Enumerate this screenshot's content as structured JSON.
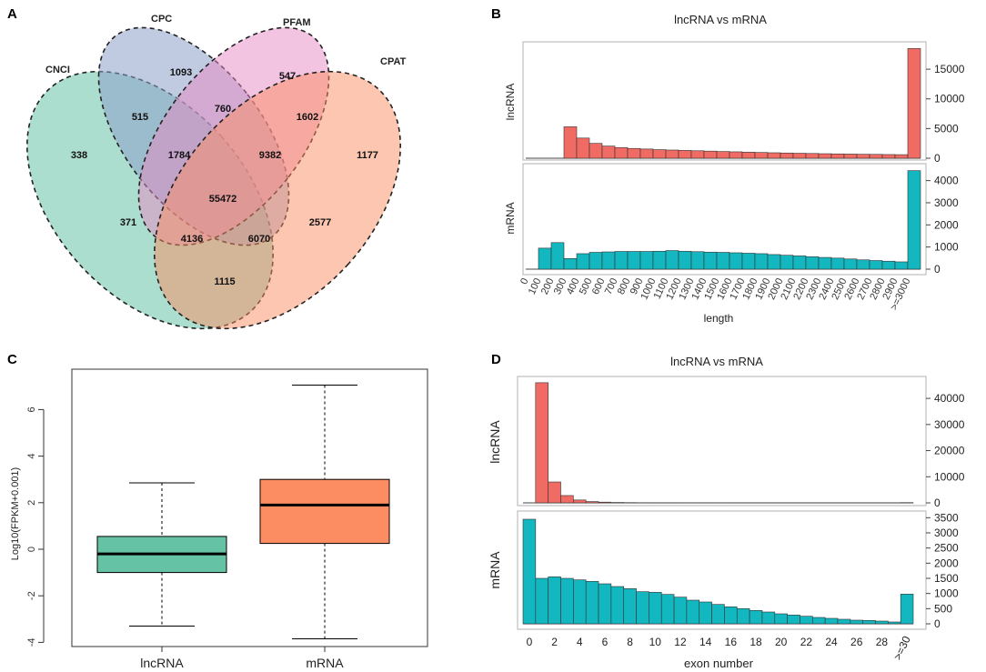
{
  "panels": {
    "A": "A",
    "B": "B",
    "C": "C",
    "D": "D"
  },
  "colors": {
    "cnci": "#66c2a5",
    "cpc": "#8da0cb",
    "pfam": "#e78ac3",
    "cpat": "#fc8d62",
    "lncrna_bar": "#f06b63",
    "mrna_bar": "#13b7bf",
    "box_lnc": "#66c2a5",
    "box_mrna": "#fc8d62",
    "frame": "#bdbdbd"
  },
  "chart_data": [
    {
      "type": "venn",
      "sets": [
        "CNCI",
        "CPC",
        "PFAM",
        "CPAT"
      ],
      "regions": [
        {
          "id": "cnci_only",
          "value": "338"
        },
        {
          "id": "cpc_only",
          "value": "1093"
        },
        {
          "id": "pfam_only",
          "value": "547"
        },
        {
          "id": "cpat_only",
          "value": "1177"
        },
        {
          "id": "cnci_cpc",
          "value": "515"
        },
        {
          "id": "cpc_pfam",
          "value": "760"
        },
        {
          "id": "pfam_cpat",
          "value": "1602"
        },
        {
          "id": "cnci_cpc_pfam",
          "value": "1784"
        },
        {
          "id": "cpc_pfam_cpat",
          "value": "9382"
        },
        {
          "id": "all_four",
          "value": "55472"
        },
        {
          "id": "cnci_pfam",
          "value": "371"
        },
        {
          "id": "cnci_pfam_cpat",
          "value": "4136"
        },
        {
          "id": "cnci_cpc_cpat",
          "value": "6070"
        },
        {
          "id": "cpc_cpat",
          "value": "2577"
        },
        {
          "id": "cnci_cpat",
          "value": "1115"
        }
      ]
    },
    {
      "type": "bar",
      "title": "lncRNA vs mRNA",
      "xlabel": "length",
      "categories": [
        "0",
        "100",
        "200",
        "300",
        "400",
        "500",
        "600",
        "700",
        "800",
        "900",
        "1000",
        "1100",
        "1200",
        "1300",
        "1400",
        "1500",
        "1600",
        "1700",
        "1800",
        "1900",
        "2000",
        "2100",
        "2200",
        "2300",
        "2400",
        "2500",
        "2600",
        "2700",
        "2800",
        "2900",
        ">=3000"
      ],
      "series": [
        {
          "name": "lncRNA",
          "ylim": [
            0,
            19000
          ],
          "yticks": [
            0,
            5000,
            10000,
            15000
          ],
          "values": [
            0,
            0,
            0,
            5300,
            3400,
            2500,
            2050,
            1800,
            1650,
            1550,
            1450,
            1380,
            1320,
            1260,
            1200,
            1130,
            1080,
            1020,
            970,
            920,
            880,
            840,
            800,
            760,
            730,
            700,
            670,
            650,
            620,
            600,
            18500
          ]
        },
        {
          "name": "mRNA",
          "ylim": [
            0,
            4600
          ],
          "yticks": [
            0,
            1000,
            2000,
            3000,
            4000
          ],
          "values": [
            0,
            950,
            1200,
            480,
            700,
            760,
            780,
            800,
            800,
            800,
            810,
            840,
            810,
            790,
            770,
            760,
            740,
            720,
            700,
            660,
            630,
            600,
            560,
            530,
            500,
            460,
            420,
            390,
            360,
            330,
            4450
          ]
        }
      ]
    },
    {
      "type": "box",
      "ylabel": "Log10(FPKM+0.001)",
      "ylim": [
        -4.2,
        7.3
      ],
      "yticks": [
        -4,
        -2,
        0,
        2,
        4,
        6
      ],
      "categories": [
        "lncRNA",
        "mRNA"
      ],
      "boxes": [
        {
          "name": "lncRNA",
          "whisker_low": -3.3,
          "q1": -1.0,
          "median": -0.2,
          "q3": 0.55,
          "whisker_high": 2.85
        },
        {
          "name": "mRNA",
          "whisker_low": -3.85,
          "q1": 0.25,
          "median": 1.9,
          "q3": 3.0,
          "whisker_high": 7.05
        }
      ]
    },
    {
      "type": "bar",
      "title": "lncRNA vs mRNA",
      "xlabel": "exon number",
      "categories": [
        "0",
        "1",
        "2",
        "3",
        "4",
        "5",
        "6",
        "7",
        "8",
        "9",
        "10",
        "11",
        "12",
        "13",
        "14",
        "15",
        "16",
        "17",
        "18",
        "19",
        "20",
        "21",
        "22",
        "23",
        "24",
        "25",
        "26",
        "27",
        "28",
        "29",
        ">=30"
      ],
      "xtick_labels": [
        "0",
        "2",
        "4",
        "6",
        "8",
        "10",
        "12",
        "14",
        "16",
        "18",
        "20",
        "22",
        "24",
        "26",
        "28",
        ">=30"
      ],
      "series": [
        {
          "name": "lncRNA",
          "ylim": [
            0,
            47000
          ],
          "yticks": [
            0,
            10000,
            20000,
            30000,
            40000
          ],
          "values": [
            0,
            46000,
            8000,
            2800,
            1100,
            500,
            280,
            150,
            100,
            70,
            50,
            40,
            30,
            25,
            20,
            15,
            12,
            10,
            9,
            8,
            7,
            6,
            5,
            5,
            4,
            4,
            3,
            3,
            3,
            3,
            100
          ]
        },
        {
          "name": "mRNA",
          "ylim": [
            0,
            3600
          ],
          "yticks": [
            0,
            500,
            1000,
            1500,
            2000,
            2500,
            3000,
            3500
          ],
          "values": [
            3450,
            1500,
            1550,
            1500,
            1450,
            1400,
            1320,
            1230,
            1160,
            1060,
            1040,
            970,
            880,
            780,
            720,
            640,
            560,
            500,
            440,
            390,
            330,
            290,
            250,
            210,
            180,
            150,
            120,
            110,
            90,
            60,
            980
          ]
        }
      ]
    }
  ]
}
